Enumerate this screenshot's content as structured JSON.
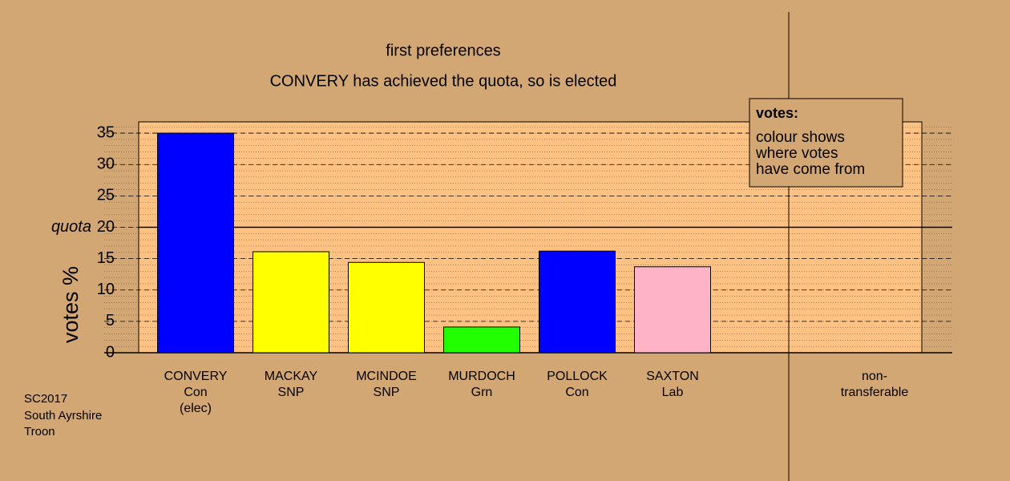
{
  "chart_data": {
    "type": "bar",
    "title": "first preferences",
    "subtitle": "CONVERY has achieved the quota, so is elected",
    "y_label": "votes %",
    "categories": [
      [
        "CONVERY",
        "Con",
        "(elec)"
      ],
      [
        "MACKAY",
        "SNP"
      ],
      [
        "MCINDOE",
        "SNP"
      ],
      [
        "MURDOCH",
        "Grn"
      ],
      [
        "POLLOCK",
        "Con"
      ],
      [
        "SAXTON",
        "Lab"
      ],
      [
        "non-",
        "transferable"
      ]
    ],
    "values": [
      35.0,
      16.1,
      14.4,
      4.1,
      16.2,
      13.7,
      null
    ],
    "colors": [
      "#0000ff",
      "#ffff00",
      "#ffff00",
      "#22ff00",
      "#0000ff",
      "#ffb3c6",
      null
    ],
    "ylim": [
      0,
      36.8
    ],
    "yticks": [
      0,
      5,
      10,
      15,
      20,
      25,
      30,
      35
    ],
    "minor_grid": 1,
    "grid": true,
    "quota": 20,
    "quota_label": "quota",
    "legend": {
      "title": "votes:",
      "lines": [
        "colour shows",
        "where votes",
        "have come from"
      ]
    },
    "footer": [
      "SC2017",
      "South Ayrshire",
      "Troon"
    ]
  }
}
